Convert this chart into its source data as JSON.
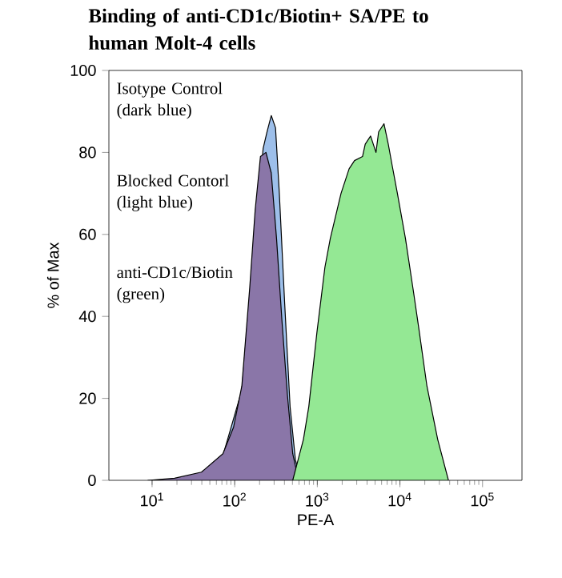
{
  "chart_data": {
    "type": "area",
    "title": "Binding of anti-CD1c/Biotin+ SA/PE to human Molt-4 cells",
    "xlabel": "PE-A",
    "ylabel": "% of Max",
    "log": "x",
    "xlim": [
      3,
      300000
    ],
    "ylim": [
      0,
      100
    ],
    "xticks": [
      {
        "value": 10,
        "label": "10$^{1}$"
      },
      {
        "value": 100,
        "label": "10$^{2}$"
      },
      {
        "value": 1000,
        "label": "10$^{3}$"
      },
      {
        "value": 10000,
        "label": "10$^{4}$"
      },
      {
        "value": 100000,
        "label": "10$^{5}$"
      }
    ],
    "yticks": [
      0,
      20,
      40,
      60,
      80,
      100
    ],
    "annotations": [
      "Isotype Control (dark blue)",
      "Blocked Contorl (light blue)",
      "anti-CD1c/Biotin (green)"
    ],
    "series": [
      {
        "color": "#9dbfea",
        "x": [
          72,
          122,
          152,
          221,
          246,
          277,
          312,
          347,
          403,
          468,
          543,
          631,
          732
        ],
        "values": [
          6,
          22,
          45,
          81,
          85,
          89,
          86,
          70,
          43,
          18,
          5,
          0.3,
          0
        ]
      },
      {
        "color": "#8a76a8",
        "x": [
          8.9,
          18.7,
          39.6,
          72,
          97,
          122,
          152,
          177,
          205,
          239,
          277,
          321,
          373,
          434,
          504,
          585,
          679
        ],
        "values": [
          0,
          0.5,
          2,
          6.5,
          13,
          23,
          47,
          66,
          79,
          80,
          75,
          59,
          39,
          21,
          6.5,
          0.5,
          0
        ]
      },
      {
        "color": "#94e894",
        "x": [
          504,
          585,
          679,
          789,
          988,
          1236,
          1436,
          1936,
          2425,
          2817,
          3524,
          3800,
          4415,
          5129,
          5521,
          6414,
          7229,
          8022,
          9318,
          11660,
          14590,
          16950,
          21220,
          28640,
          38650
        ],
        "values": [
          0,
          5,
          10,
          18,
          36,
          52,
          59,
          70,
          76,
          78,
          79,
          82,
          84,
          80,
          85,
          87,
          82,
          77,
          70,
          59,
          46,
          37,
          23,
          10,
          0
        ]
      }
    ]
  }
}
